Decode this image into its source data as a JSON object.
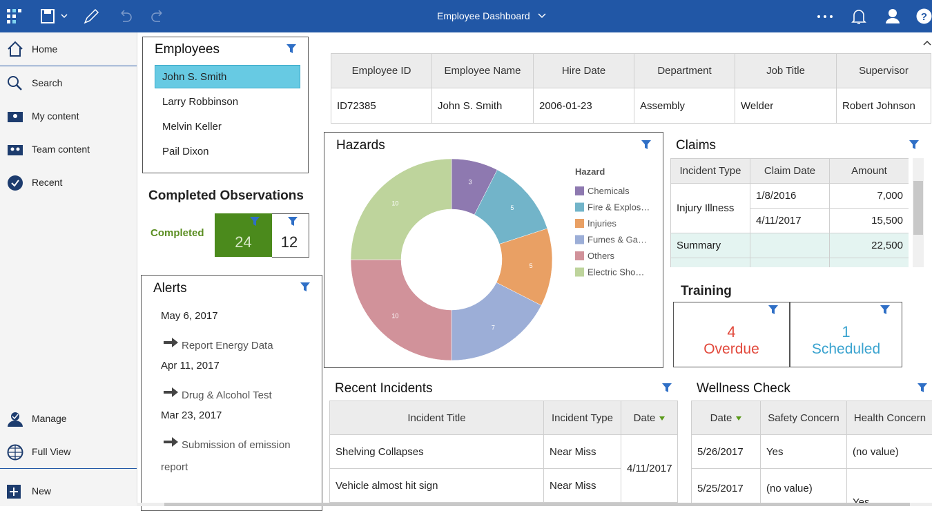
{
  "topbar": {
    "title": "Employee Dashboard"
  },
  "sidebar": {
    "items": [
      "Home",
      "Search",
      "My content",
      "Team content",
      "Recent"
    ],
    "bottom_items": [
      "Manage",
      "Full View"
    ],
    "new": "New"
  },
  "employees": {
    "title": "Employees",
    "list": [
      "John S. Smith",
      "Larry Robbinson",
      "Melvin Keller",
      "Pail Dixon"
    ]
  },
  "observations": {
    "title": "Completed Observations",
    "label": "Completed",
    "completed": "24",
    "other": "12"
  },
  "alerts": {
    "title": "Alerts",
    "items": [
      {
        "date": "May 6, 2017",
        "text": "Report Energy Data"
      },
      {
        "date": "Apr 11, 2017",
        "text": "Drug & Alcohol Test"
      },
      {
        "date": "Mar 23, 2017",
        "text": "Submission of emission report"
      }
    ]
  },
  "employee_table": {
    "headers": [
      "Employee ID",
      "Employee Name",
      "Hire Date",
      "Department",
      "Job Title",
      "Supervisor"
    ],
    "rows": [
      [
        "ID72385",
        "John S. Smith",
        "2006-01-23",
        "Assembly",
        "Welder",
        "Robert Johnson"
      ]
    ]
  },
  "chart_data": {
    "type": "pie",
    "donut": true,
    "title": "Hazards",
    "legend_title": "Hazard",
    "categories": [
      "Chemicals",
      "Fire & Explos…",
      "Injuries",
      "Fumes & Ga…",
      "Others",
      "Electric Sho…"
    ],
    "values": [
      3,
      5,
      5,
      7,
      10,
      10
    ],
    "colors": [
      "#8e79b0",
      "#72b4c9",
      "#e9a064",
      "#9caed7",
      "#d1929a",
      "#bed49c"
    ]
  },
  "claims": {
    "title": "Claims",
    "headers": [
      "Incident Type",
      "Claim Date",
      "Amount"
    ],
    "group": "Injury Illness",
    "rows": [
      [
        "1/8/2016",
        "7,000"
      ],
      [
        "4/11/2017",
        "15,500"
      ]
    ],
    "summary": [
      "Summary",
      "22,500"
    ]
  },
  "training": {
    "title": "Training",
    "overdue": {
      "value": "4",
      "label": "Overdue"
    },
    "scheduled": {
      "value": "1",
      "label": "Scheduled"
    }
  },
  "incidents": {
    "title": "Recent Incidents",
    "headers": [
      "Incident Title",
      "Incident Type",
      "Date"
    ],
    "rows": [
      [
        "Shelving Collapses",
        "Near Miss"
      ],
      [
        "Vehicle almost hit sign",
        "Near Miss"
      ]
    ],
    "date": "4/11/2017"
  },
  "wellness": {
    "title": "Wellness Check",
    "headers": [
      "Date",
      "Safety Concern",
      "Health Concern"
    ],
    "rows": [
      [
        "5/26/2017",
        "Yes",
        "(no value)"
      ],
      [
        "5/25/2017",
        "(no value)",
        "Yes"
      ]
    ]
  }
}
